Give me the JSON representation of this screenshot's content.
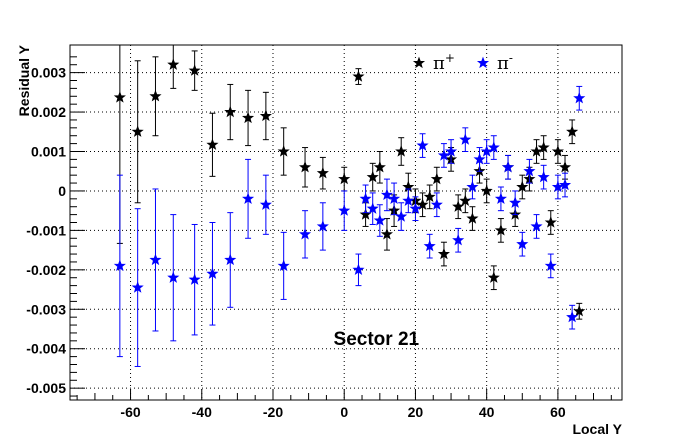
{
  "chart_data": {
    "type": "scatter",
    "title": "",
    "xlabel": "Local Y",
    "ylabel": "Residual Y",
    "annotation": "Sector 21",
    "xlim": [
      -77,
      78
    ],
    "ylim": [
      -0.0053,
      0.0037
    ],
    "x_ticks": [
      -60,
      -40,
      -20,
      0,
      20,
      40,
      60
    ],
    "x_tick_labels": [
      "-60",
      "-40",
      "-20",
      "0",
      "20",
      "40",
      "60"
    ],
    "y_ticks": [
      -0.005,
      -0.004,
      -0.003,
      -0.002,
      -0.001,
      0,
      0.001,
      0.002,
      0.003
    ],
    "y_tick_labels": [
      "-0.005",
      "-0.004",
      "-0.003",
      "-0.002",
      "-0.001",
      "0",
      "0.001",
      "0.002",
      "0.003"
    ],
    "grid": true,
    "legend_position": "top-right",
    "series": [
      {
        "name": "π+",
        "color": "#000000",
        "points": [
          {
            "x": -63,
            "y": 0.00237,
            "err": 0.0037
          },
          {
            "x": -58,
            "y": 0.0015,
            "err": 0.0018
          },
          {
            "x": -53,
            "y": 0.0024,
            "err": 0.001
          },
          {
            "x": -48,
            "y": 0.0032,
            "err": 0.0006
          },
          {
            "x": -42,
            "y": 0.00305,
            "err": 0.0005
          },
          {
            "x": -37,
            "y": 0.00117,
            "err": 0.0008
          },
          {
            "x": -32,
            "y": 0.002,
            "err": 0.0007
          },
          {
            "x": -27,
            "y": 0.00185,
            "err": 0.0007
          },
          {
            "x": -22,
            "y": 0.0019,
            "err": 0.0006
          },
          {
            "x": -17,
            "y": 0.001,
            "err": 0.0006
          },
          {
            "x": -11,
            "y": 0.0006,
            "err": 0.0005
          },
          {
            "x": -6,
            "y": 0.00045,
            "err": 0.0004
          },
          {
            "x": 0,
            "y": 0.0003,
            "err": 0.0003
          },
          {
            "x": 4,
            "y": 0.0029,
            "err": 0.0002
          },
          {
            "x": 6,
            "y": -0.0006,
            "err": 0.0003
          },
          {
            "x": 8,
            "y": 0.00035,
            "err": 0.00035
          },
          {
            "x": 10,
            "y": 0.0006,
            "err": 0.0004
          },
          {
            "x": 12,
            "y": -0.0011,
            "err": 0.0004
          },
          {
            "x": 14,
            "y": -0.0005,
            "err": 0.0004
          },
          {
            "x": 16,
            "y": 0.001,
            "err": 0.00035
          },
          {
            "x": 18,
            "y": 0.0001,
            "err": 0.00035
          },
          {
            "x": 20,
            "y": -0.00025,
            "err": 0.0003
          },
          {
            "x": 22,
            "y": -0.00035,
            "err": 0.0003
          },
          {
            "x": 24,
            "y": -0.00015,
            "err": 0.0003
          },
          {
            "x": 26,
            "y": 0.0003,
            "err": 0.0003
          },
          {
            "x": 28,
            "y": -0.0016,
            "err": 0.0003
          },
          {
            "x": 30,
            "y": 0.0008,
            "err": 0.0003
          },
          {
            "x": 32,
            "y": -0.0004,
            "err": 0.0003
          },
          {
            "x": 34,
            "y": -0.00025,
            "err": 0.0003
          },
          {
            "x": 36,
            "y": -0.0007,
            "err": 0.0003
          },
          {
            "x": 38,
            "y": 0.0005,
            "err": 0.0003
          },
          {
            "x": 40,
            "y": 0.0,
            "err": 0.0003
          },
          {
            "x": 42,
            "y": -0.0022,
            "err": 0.0003
          },
          {
            "x": 44,
            "y": -0.001,
            "err": 0.0003
          },
          {
            "x": 46,
            "y": 0.0006,
            "err": 0.0003
          },
          {
            "x": 48,
            "y": -0.0006,
            "err": 0.0003
          },
          {
            "x": 50,
            "y": 0.0001,
            "err": 0.0003
          },
          {
            "x": 52,
            "y": 0.0003,
            "err": 0.0003
          },
          {
            "x": 54,
            "y": 0.001,
            "err": 0.0003
          },
          {
            "x": 56,
            "y": 0.0011,
            "err": 0.0003
          },
          {
            "x": 58,
            "y": -0.0008,
            "err": 0.0003
          },
          {
            "x": 60,
            "y": 0.001,
            "err": 0.0003
          },
          {
            "x": 62,
            "y": 0.0006,
            "err": 0.0003
          },
          {
            "x": 64,
            "y": 0.0015,
            "err": 0.0003
          },
          {
            "x": 66,
            "y": -0.00305,
            "err": 0.0002
          }
        ]
      },
      {
        "name": "π-",
        "color": "#0000ff",
        "points": [
          {
            "x": -63,
            "y": -0.0019,
            "err": 0.0023
          },
          {
            "x": -58,
            "y": -0.00245,
            "err": 0.002
          },
          {
            "x": -53,
            "y": -0.00175,
            "err": 0.0018
          },
          {
            "x": -48,
            "y": -0.0022,
            "err": 0.0016
          },
          {
            "x": -42,
            "y": -0.00225,
            "err": 0.0014
          },
          {
            "x": -37,
            "y": -0.0021,
            "err": 0.0013
          },
          {
            "x": -32,
            "y": -0.00175,
            "err": 0.0012
          },
          {
            "x": -27,
            "y": -0.0002,
            "err": 0.001
          },
          {
            "x": -22,
            "y": -0.00035,
            "err": 0.00075
          },
          {
            "x": -17,
            "y": -0.0019,
            "err": 0.00085
          },
          {
            "x": -11,
            "y": -0.0011,
            "err": 0.0006
          },
          {
            "x": -6,
            "y": -0.0009,
            "err": 0.0006
          },
          {
            "x": 0,
            "y": -0.0005,
            "err": 0.0005
          },
          {
            "x": 4,
            "y": -0.002,
            "err": 0.0004
          },
          {
            "x": 6,
            "y": -0.0002,
            "err": 0.00035
          },
          {
            "x": 8,
            "y": -0.00045,
            "err": 0.0004
          },
          {
            "x": 10,
            "y": -0.00075,
            "err": 0.0004
          },
          {
            "x": 12,
            "y": -0.0001,
            "err": 0.0004
          },
          {
            "x": 14,
            "y": -0.0002,
            "err": 0.0004
          },
          {
            "x": 16,
            "y": -0.00065,
            "err": 0.00035
          },
          {
            "x": 18,
            "y": -0.00025,
            "err": 0.0003
          },
          {
            "x": 20,
            "y": -0.00045,
            "err": 0.0003
          },
          {
            "x": 22,
            "y": 0.00115,
            "err": 0.0003
          },
          {
            "x": 24,
            "y": -0.0014,
            "err": 0.0003
          },
          {
            "x": 26,
            "y": -0.00035,
            "err": 0.0003
          },
          {
            "x": 28,
            "y": 0.0009,
            "err": 0.0003
          },
          {
            "x": 30,
            "y": 0.001,
            "err": 0.0003
          },
          {
            "x": 32,
            "y": -0.00125,
            "err": 0.0003
          },
          {
            "x": 34,
            "y": 0.0013,
            "err": 0.0003
          },
          {
            "x": 36,
            "y": 0.0001,
            "err": 0.0003
          },
          {
            "x": 38,
            "y": 0.0008,
            "err": 0.0003
          },
          {
            "x": 40,
            "y": 0.001,
            "err": 0.0003
          },
          {
            "x": 42,
            "y": 0.0011,
            "err": 0.0003
          },
          {
            "x": 44,
            "y": -0.0002,
            "err": 0.0003
          },
          {
            "x": 46,
            "y": 0.0006,
            "err": 0.0003
          },
          {
            "x": 48,
            "y": -0.0003,
            "err": 0.0003
          },
          {
            "x": 50,
            "y": -0.00135,
            "err": 0.0003
          },
          {
            "x": 52,
            "y": 0.0005,
            "err": 0.0003
          },
          {
            "x": 54,
            "y": -0.0009,
            "err": 0.0003
          },
          {
            "x": 56,
            "y": 0.00035,
            "err": 0.0003
          },
          {
            "x": 58,
            "y": -0.0019,
            "err": 0.0003
          },
          {
            "x": 60,
            "y": 0.0001,
            "err": 0.0003
          },
          {
            "x": 62,
            "y": 0.00015,
            "err": 0.0003
          },
          {
            "x": 64,
            "y": -0.0032,
            "err": 0.0003
          },
          {
            "x": 66,
            "y": 0.00235,
            "err": 0.0003
          }
        ]
      }
    ]
  }
}
